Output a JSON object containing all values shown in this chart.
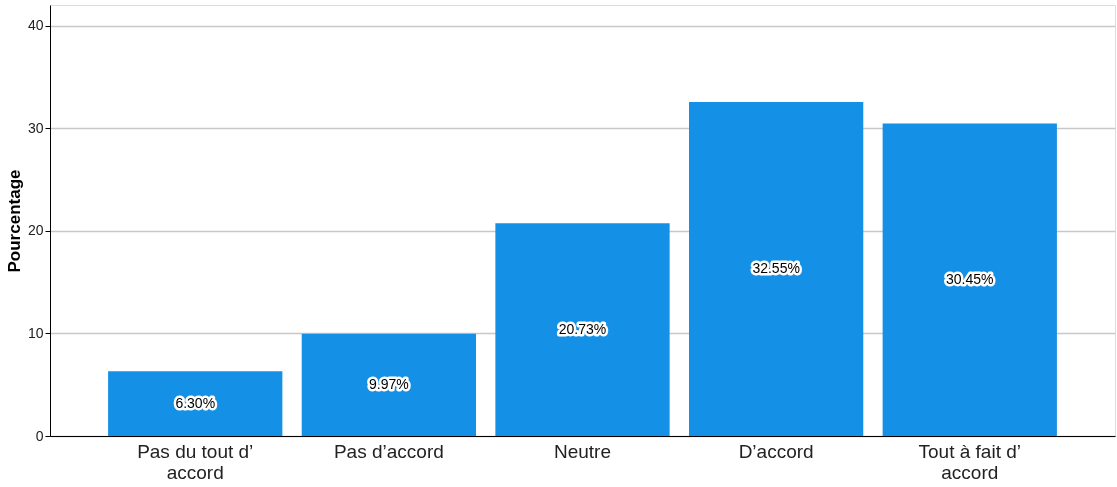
{
  "chart_data": {
    "type": "bar",
    "ylabel": "Pourcentage",
    "categories": [
      "Pas du tout d’ accord",
      "Pas d’accord",
      "Neutre",
      "D’accord",
      "Tout à fait d’ accord"
    ],
    "values": [
      6.3,
      9.97,
      20.73,
      32.55,
      30.45
    ],
    "value_labels": [
      "6.30%",
      "9.97%",
      "20.73%",
      "32.55%",
      "30.45%"
    ],
    "color": "#1490e6",
    "ylim": [
      0,
      42
    ],
    "yticks": [
      0,
      10,
      20,
      30,
      40
    ],
    "grid": "y"
  }
}
